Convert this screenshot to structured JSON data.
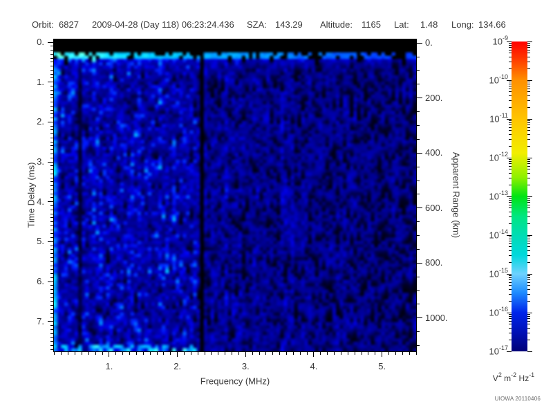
{
  "header": {
    "orbit_label": "Orbit:",
    "orbit_value": "6827",
    "datetime": "2009-04-28 (Day 118) 06:23:24.436",
    "sza_label": "SZA:",
    "sza_value": "143.29",
    "altitude_label": "Altitude:",
    "altitude_value": "1165",
    "lat_label": "Lat:",
    "lat_value": "1.48",
    "long_label": "Long:",
    "long_value": "134.66"
  },
  "credit": "UIOWA 20110406",
  "chart_data": {
    "type": "heatmap",
    "title": "",
    "xlabel": "Frequency (MHz)",
    "x_range": [
      0.19,
      5.5
    ],
    "x_major_ticks": [
      1,
      2,
      3,
      4,
      5
    ],
    "x_major_labels": [
      "1.",
      "2.",
      "3.",
      "4.",
      "5."
    ],
    "x_minor_step": 0.1,
    "ylabel": "Time Delay (ms)",
    "y_range": [
      -0.07,
      7.75
    ],
    "y_major_ticks": [
      0,
      1,
      2,
      3,
      4,
      5,
      6,
      7
    ],
    "y_major_labels": [
      "0.",
      "1.",
      "2.",
      "3.",
      "4.",
      "5.",
      "6.",
      "7."
    ],
    "y_minor_step": 0.1,
    "y2label": "Apparent Range (km)",
    "y2_range": [
      -13,
      1121
    ],
    "y2_major_ticks": [
      0,
      200,
      400,
      600,
      800,
      1000
    ],
    "y2_major_labels": [
      "0.",
      "200.",
      "400.",
      "600.",
      "800.",
      "1000."
    ],
    "y2_minor_step": 50,
    "grid": false,
    "colorbar": {
      "scale": "log",
      "tick_exponents": [
        -9,
        -10,
        -11,
        -12,
        -13,
        -14,
        -15,
        -16,
        -17
      ],
      "unit_parts": [
        [
          "V",
          false
        ],
        [
          "2",
          true
        ],
        [
          " m",
          false
        ],
        [
          "-2",
          true
        ],
        [
          " Hz",
          false
        ],
        [
          "-1",
          true
        ]
      ],
      "gradient": [
        [
          0,
          "#ff0000"
        ],
        [
          0.05,
          "#ff3200"
        ],
        [
          0.125,
          "#ff9000"
        ],
        [
          0.25,
          "#ffc400"
        ],
        [
          0.36,
          "#f2ee00"
        ],
        [
          0.44,
          "#8cf000"
        ],
        [
          0.5,
          "#00e414"
        ],
        [
          0.565,
          "#00e682"
        ],
        [
          0.625,
          "#00dcb4"
        ],
        [
          0.69,
          "#00d8dc"
        ],
        [
          0.75,
          "#6ed2ff"
        ],
        [
          0.81,
          "#1e8cff"
        ],
        [
          0.875,
          "#0024ea"
        ],
        [
          0.94,
          "#0010b4"
        ],
        [
          1,
          "#000078"
        ]
      ]
    },
    "spectrogram": {
      "seed": 1337,
      "cols": 104,
      "rows": 96,
      "top_blank_delay_ms": 0.31,
      "surface_band": {
        "delay_min": 0.31,
        "delay_max": 0.47,
        "base_v": 0.99,
        "fade_per_mhz": 0.06,
        "min_v": 0.55,
        "gap_base": 0.1,
        "gap_per_mhz": 0.06
      },
      "blackout_lane": {
        "center_mhz": 2.35,
        "halfwidth_mhz": 0.038
      },
      "striped_zone_max_mhz": 0.65,
      "left_edge_bright_max_mhz": 0.24,
      "bottom_streak": {
        "delay_min": 7.58,
        "freq_max_mhz": 2.35,
        "prob": 0.5
      },
      "brightness_by_freq": [
        [
          1.0,
          0.62
        ],
        [
          2.2,
          0.58
        ],
        [
          3.3,
          0.5
        ],
        [
          4.5,
          0.44
        ],
        [
          9,
          0.4
        ]
      ],
      "black_fraction_by_freq": [
        [
          2.2,
          0.24
        ],
        [
          3.3,
          0.3
        ],
        [
          4.5,
          0.36
        ],
        [
          5.3,
          0.4
        ],
        [
          9,
          0.52
        ]
      ],
      "cyan_accent": {
        "freq_max_mhz": 2.3,
        "prob": 0.09
      },
      "palette": [
        [
          0,
          "#000014"
        ],
        [
          0.12,
          "#000080"
        ],
        [
          0.3,
          "#0000aa"
        ],
        [
          0.5,
          "#0000e6"
        ],
        [
          0.68,
          "#0038ff"
        ],
        [
          0.8,
          "#0090ff"
        ],
        [
          0.9,
          "#00ccff"
        ],
        [
          0.96,
          "#38f0ff"
        ],
        [
          1,
          "#78ffc8"
        ]
      ]
    }
  }
}
